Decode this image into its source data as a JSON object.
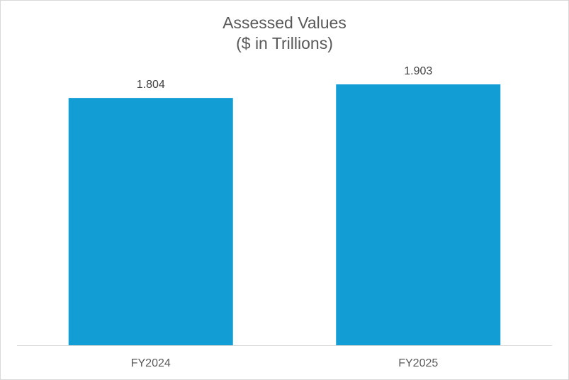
{
  "chart_data": {
    "type": "bar",
    "title": "Assessed Values",
    "subtitle": "($ in Trillions)",
    "categories": [
      "FY2024",
      "FY2025"
    ],
    "values": [
      1.804,
      1.903
    ],
    "data_labels": [
      "1.804",
      "1.903"
    ],
    "ylim": [
      0,
      1.903
    ],
    "grid": false,
    "legend": "none",
    "bar_color": "#129ED5",
    "axis_color": "#D9D9D9"
  }
}
